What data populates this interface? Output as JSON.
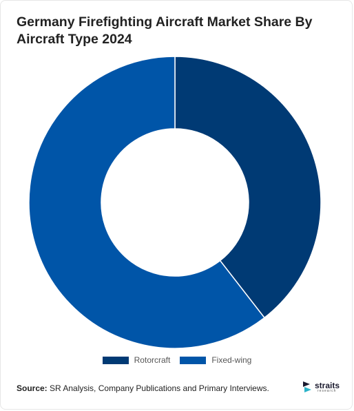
{
  "title": "Germany Firefighting Aircraft Market Share By Aircraft Type 2024",
  "chart_data": {
    "type": "pie",
    "variant": "donut",
    "title": "Germany Firefighting Aircraft Market Share By Aircraft Type 2024",
    "categories": [
      "Rotorcraft",
      "Fixed-wing"
    ],
    "values": [
      39.5,
      60.5
    ],
    "unit": "%",
    "start_angle": "12 o'clock, clockwise",
    "colors": [
      "#003a74",
      "#0055a8"
    ],
    "legend": {
      "placement": "bottom-center",
      "entries": [
        "Rotorcraft",
        "Fixed-wing"
      ]
    }
  },
  "source": {
    "label": "Source:",
    "text": "SR Analysis, Company Publications and Primary Interviews."
  },
  "logo": {
    "main": "straits",
    "sub": "research"
  }
}
